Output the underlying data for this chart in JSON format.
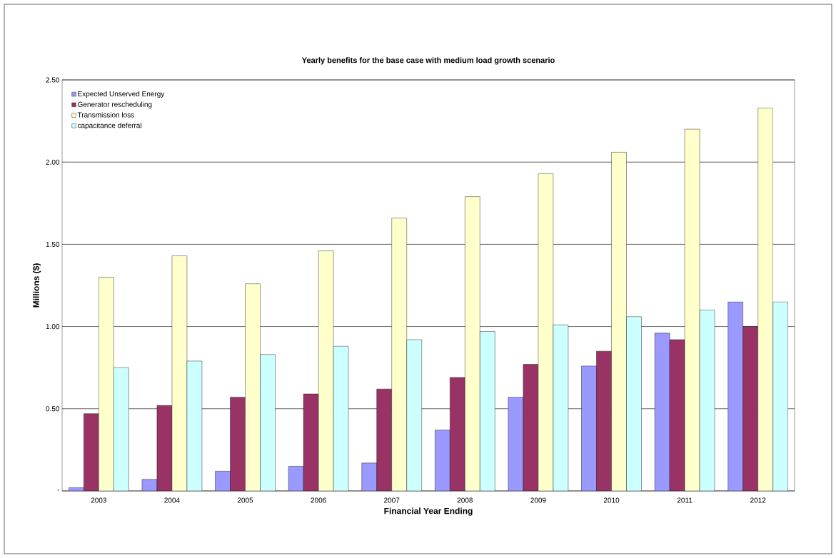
{
  "chart_data": {
    "type": "bar",
    "title": "Yearly benefits for the base case with medium load growth scenario",
    "xlabel": "Financial Year Ending",
    "ylabel": "Millions ($)",
    "categories": [
      "2003",
      "2004",
      "2005",
      "2006",
      "2007",
      "2008",
      "2009",
      "2010",
      "2011",
      "2012"
    ],
    "series": [
      {
        "name": "Expected Unserved Energy",
        "color": "#9999ff",
        "values": [
          0.02,
          0.07,
          0.12,
          0.15,
          0.17,
          0.37,
          0.57,
          0.76,
          0.96,
          1.15
        ]
      },
      {
        "name": "Generator rescheduling",
        "color": "#993366",
        "values": [
          0.47,
          0.52,
          0.57,
          0.59,
          0.62,
          0.69,
          0.77,
          0.85,
          0.92,
          1.0
        ]
      },
      {
        "name": "Transmission loss",
        "color": "#ffffcc",
        "values": [
          1.3,
          1.43,
          1.26,
          1.46,
          1.66,
          1.79,
          1.93,
          2.06,
          2.2,
          2.33
        ]
      },
      {
        "name": "capacitance deferral",
        "color": "#ccffff",
        "values": [
          0.75,
          0.79,
          0.83,
          0.88,
          0.92,
          0.97,
          1.01,
          1.06,
          1.1,
          1.15
        ]
      }
    ],
    "ylim": [
      0,
      2.5
    ],
    "yticks": [
      {
        "value": 0,
        "label": "-"
      },
      {
        "value": 0.5,
        "label": "0.50"
      },
      {
        "value": 1,
        "label": "1.00"
      },
      {
        "value": 1.5,
        "label": "1.50"
      },
      {
        "value": 2,
        "label": "2.00"
      },
      {
        "value": 2.5,
        "label": "2.50"
      }
    ],
    "grid": "y",
    "legend": "top left"
  }
}
